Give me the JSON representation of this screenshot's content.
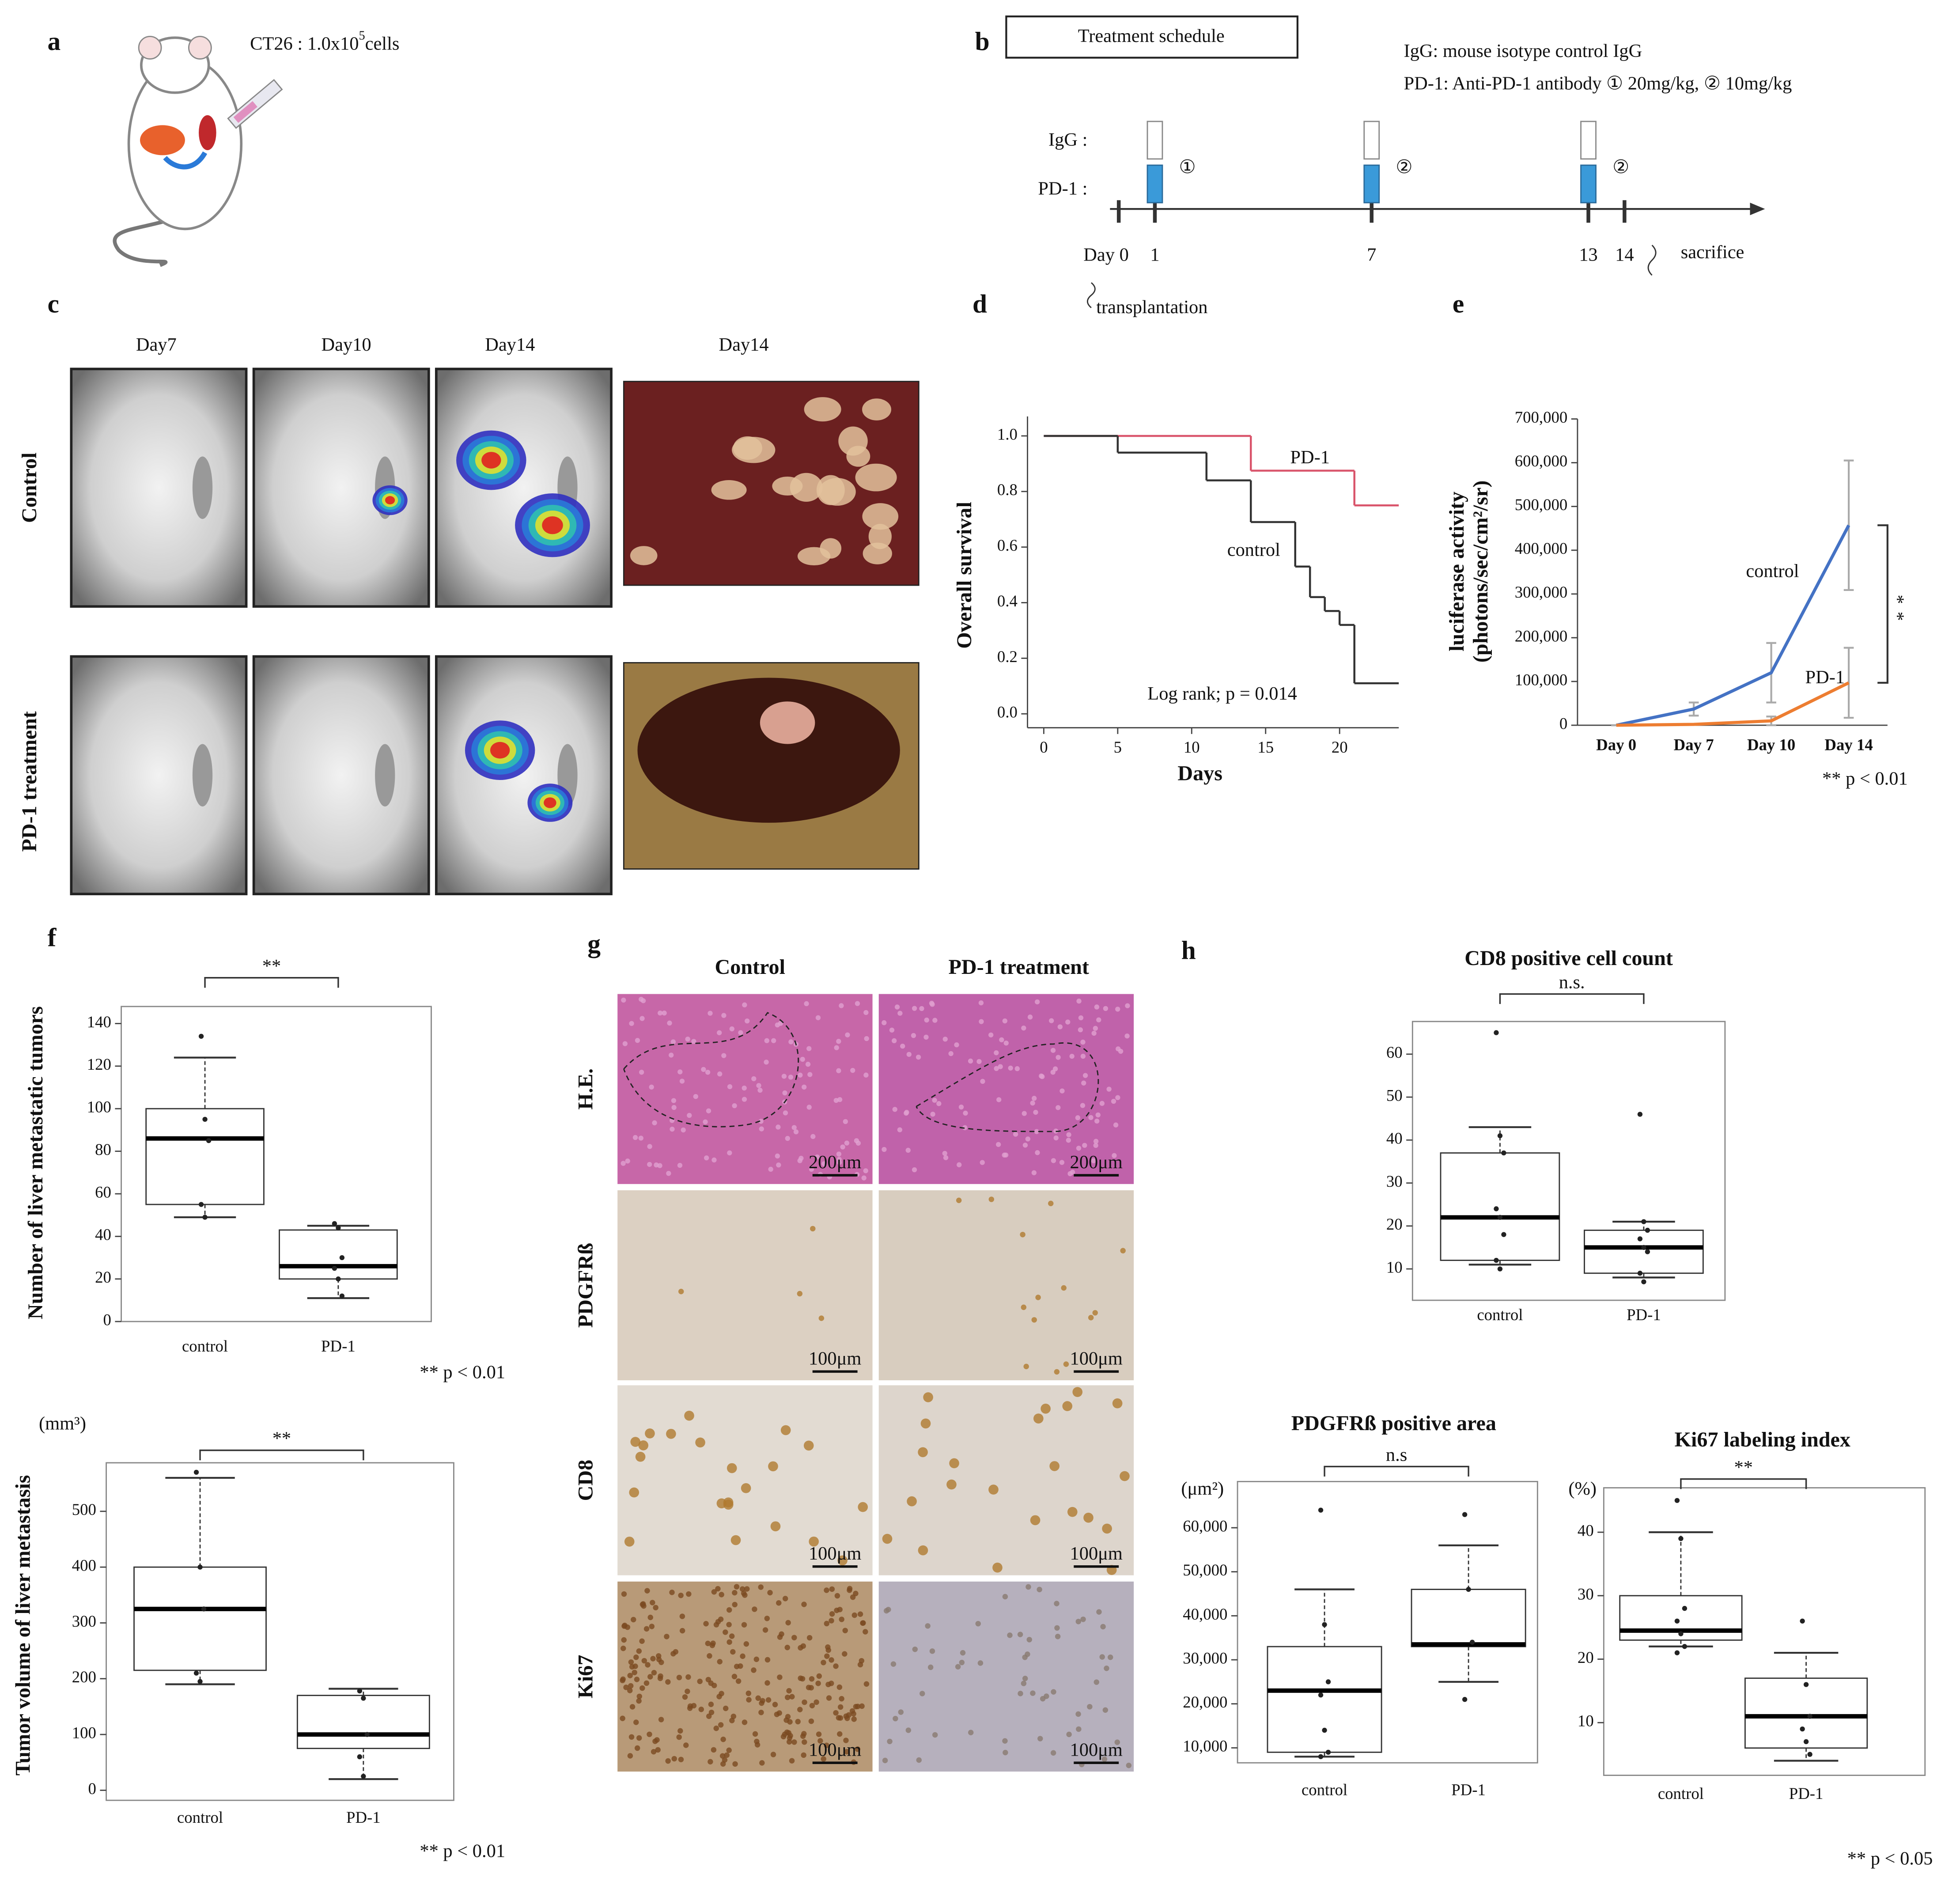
{
  "panel_labels": [
    "a",
    "b",
    "c",
    "d",
    "e",
    "f",
    "g",
    "h"
  ],
  "panel_a": {
    "cells_text": "CT26 : 1.0x10",
    "cells_exp": "5",
    "cells_unit": "cells"
  },
  "panel_b": {
    "title": "Treatment schedule",
    "legend": [
      "IgG: mouse isotype control IgG",
      "PD-1: Anti-PD-1 antibody ① 20mg/kg, ② 10mg/kg"
    ],
    "rows": [
      "IgG :",
      "PD-1 :"
    ],
    "day_ticks": [
      {
        "value": 0,
        "label": "Day 0"
      },
      1,
      7,
      13,
      14
    ],
    "dose_days": [
      1,
      7,
      13
    ],
    "dose_marks": [
      "①",
      "②",
      "②"
    ],
    "sacrifice": "sacrifice",
    "transplantation": "transplantation"
  },
  "panel_c": {
    "columns": [
      "Day7",
      "Day10",
      "Day14",
      "Day14"
    ],
    "rows": [
      "Control",
      "PD-1 treatment"
    ]
  },
  "panel_g": {
    "columns": [
      "Control",
      "PD-1 treatment"
    ],
    "rows": [
      "H.E.",
      "PDGFRß",
      "CD8",
      "Ki67"
    ],
    "scale_bars": [
      [
        "200μm",
        "200μm"
      ],
      [
        "100μm",
        "100μm"
      ],
      [
        "100μm",
        "100μm"
      ],
      [
        "100μm",
        "100μm"
      ]
    ]
  },
  "chart_data": [
    {
      "type": "line",
      "step": "post",
      "xlim": [
        -1.1,
        24
      ],
      "ylim": [
        -0.05,
        1.07
      ],
      "xticks": [
        0,
        5,
        10,
        15,
        20
      ],
      "yticks": [
        {
          "value": 0,
          "label": "0.0"
        },
        0.2,
        0.4,
        0.6,
        0.8,
        {
          "value": 1,
          "label": "1.0"
        }
      ],
      "xlabel": "Days",
      "ylabel": "Overall survival",
      "annotation": "Log rank; p = 0.014",
      "series": [
        {
          "name": "PD-1",
          "color": "#d9546b",
          "x": [
            0,
            14,
            21
          ],
          "values": [
            1,
            0.875,
            0.75
          ]
        },
        {
          "name": "control",
          "color": "#333333",
          "x": [
            0,
            5,
            11,
            14,
            17,
            18,
            19,
            20,
            21
          ],
          "values": [
            1,
            0.94,
            0.84,
            0.69,
            0.53,
            0.42,
            0.37,
            0.32,
            0.11
          ]
        }
      ]
    },
    {
      "type": "line",
      "categories": [
        "Day 0",
        "Day 7",
        "Day 10",
        "Day 14"
      ],
      "ylim": [
        0,
        700000
      ],
      "yticks": [
        0,
        {
          "value": 100000,
          "label": "100,000"
        },
        {
          "value": 200000,
          "label": "200,000"
        },
        {
          "value": 300000,
          "label": "300,000"
        },
        {
          "value": 400000,
          "label": "400,000"
        },
        {
          "value": 500000,
          "label": "500,000"
        },
        {
          "value": 600000,
          "label": "600,000"
        },
        {
          "value": 700000,
          "label": "700,000"
        }
      ],
      "ylabel": [
        "luciferase activity",
        "(photons/sec/cm²/sr)"
      ],
      "significance": "**",
      "note": "** p < 0.01",
      "series": [
        {
          "name": "control",
          "color": "#4472c4",
          "values": [
            0,
            37000,
            120000,
            457000
          ],
          "errors": [
            0,
            15000,
            68000,
            148000
          ]
        },
        {
          "name": "PD-1",
          "color": "#ed7d31",
          "values": [
            0,
            2000,
            10000,
            97000
          ],
          "errors": [
            0,
            0,
            10000,
            80000
          ]
        }
      ]
    },
    {
      "type": "box",
      "categories": [
        "control",
        "PD-1"
      ],
      "ylim": [
        0,
        148
      ],
      "yticks": [
        0,
        20,
        40,
        60,
        80,
        100,
        120,
        140
      ],
      "ylabel": "Number of liver metastatic tumors",
      "significance": "**",
      "note": "** p < 0.01",
      "boxes": [
        {
          "low": 49,
          "q1": 55,
          "median": 86,
          "q3": 100,
          "high": 124,
          "points": [
            134,
            95,
            85,
            55,
            49
          ]
        },
        {
          "low": 11,
          "q1": 20,
          "median": 26,
          "q3": 43,
          "high": 45,
          "points": [
            46,
            44,
            30,
            25,
            20,
            12
          ]
        }
      ]
    },
    {
      "type": "box",
      "categories": [
        "control",
        "PD-1"
      ],
      "ylim": [
        -18,
        587
      ],
      "yticks": [
        0,
        100,
        200,
        300,
        400,
        500
      ],
      "ylabel": "Tumor volume of liver metastasis",
      "y_unit": "(mm³)",
      "significance": "**",
      "note": "** p < 0.01",
      "boxes": [
        {
          "low": 190,
          "q1": 215,
          "median": 325,
          "q3": 400,
          "high": 560,
          "points": [
            570,
            400,
            325,
            210,
            195
          ]
        },
        {
          "low": 20,
          "q1": 75,
          "median": 100,
          "q3": 170,
          "high": 182,
          "points": [
            178,
            165,
            100,
            60,
            25
          ]
        }
      ]
    },
    {
      "type": "box",
      "title": "CD8 positive cell count",
      "categories": [
        "control",
        "PD-1"
      ],
      "ylim": [
        2.7,
        67.6
      ],
      "yticks": [
        10,
        20,
        30,
        40,
        50,
        60
      ],
      "significance": "n.s.",
      "boxes": [
        {
          "low": 11,
          "q1": 12,
          "median": 22,
          "q3": 37,
          "high": 43,
          "points": [
            65,
            41,
            37,
            24,
            22,
            18,
            12,
            10
          ]
        },
        {
          "low": 8,
          "q1": 9,
          "median": 15,
          "q3": 19,
          "high": 21,
          "points": [
            46,
            21,
            19,
            17,
            15,
            14,
            9,
            7
          ]
        }
      ]
    },
    {
      "type": "box",
      "title": "PDGFRß positive area",
      "y_unit": "(μm²)",
      "categories": [
        "control",
        "PD-1"
      ],
      "ylim": [
        6600,
        70500
      ],
      "yticks": [
        {
          "value": 10000,
          "label": "10,000"
        },
        {
          "value": 20000,
          "label": "20,000"
        },
        {
          "value": 30000,
          "label": "30,000"
        },
        {
          "value": 40000,
          "label": "40,000"
        },
        {
          "value": 50000,
          "label": "50,000"
        },
        {
          "value": 60000,
          "label": "60,000"
        }
      ],
      "significance": "n.s",
      "boxes": [
        {
          "low": 8000,
          "q1": 9000,
          "median": 23000,
          "q3": 33000,
          "high": 46000,
          "points": [
            64000,
            38000,
            25000,
            22000,
            14000,
            9000,
            8000
          ]
        },
        {
          "low": 25000,
          "q1": 33000,
          "median": 33500,
          "q3": 46000,
          "high": 56000,
          "points": [
            63000,
            46000,
            34000,
            21000
          ]
        }
      ]
    },
    {
      "type": "box",
      "title": "Ki67 labeling index",
      "y_unit": "(%)",
      "categories": [
        "control",
        "PD-1"
      ],
      "ylim": [
        1.7,
        47
      ],
      "yticks": [
        10,
        20,
        30,
        40
      ],
      "significance": "**",
      "note": "** p < 0.05",
      "boxes": [
        {
          "low": 22,
          "q1": 23,
          "median": 24.5,
          "q3": 30,
          "high": 40,
          "points": [
            45,
            39,
            28,
            26,
            24,
            22,
            21
          ]
        },
        {
          "low": 4,
          "q1": 6,
          "median": 11,
          "q3": 17,
          "high": 21,
          "points": [
            26,
            16,
            11,
            9,
            7,
            5
          ]
        }
      ]
    }
  ]
}
